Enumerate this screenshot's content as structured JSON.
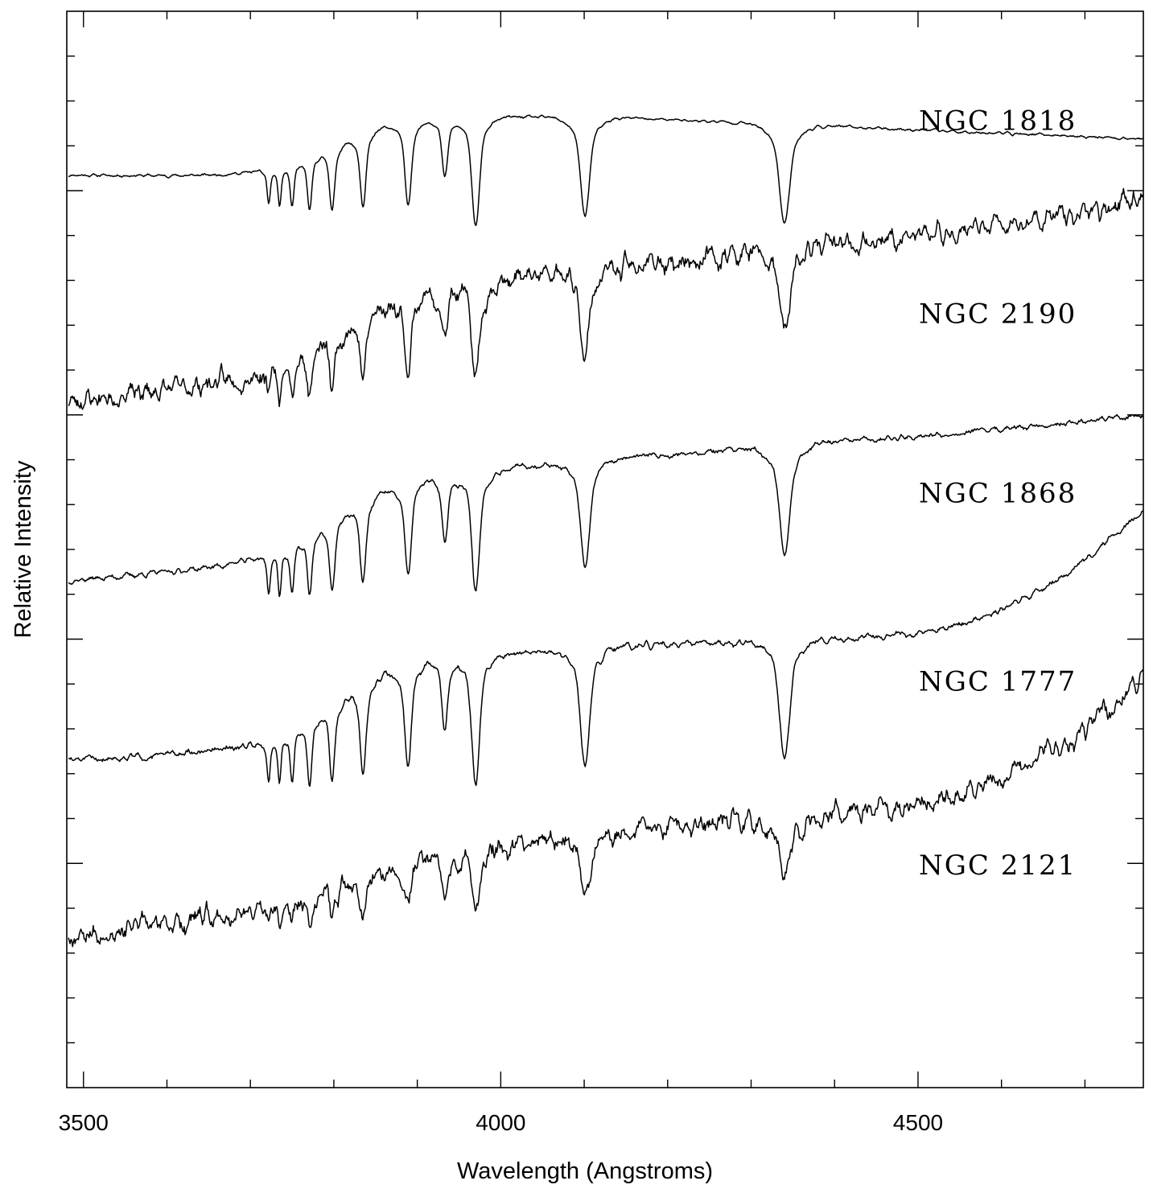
{
  "chart_data": {
    "type": "line",
    "title": "",
    "xlabel": "Wavelength (Angstroms)",
    "ylabel": "Relative Intensity",
    "xlim": [
      3480,
      4770
    ],
    "ylim": [
      0,
      24
    ],
    "y_tick_labels_shown": false,
    "grid": false,
    "legend": "none (series labelled inline at right)",
    "x_ticks": [
      3500,
      4000,
      4500
    ],
    "x_tick_labels": [
      "3500",
      "4000",
      "4500"
    ],
    "absorption_features": [
      {
        "wavelength": 3722,
        "depth": 0.35,
        "width": 2.5
      },
      {
        "wavelength": 3735,
        "depth": 0.4,
        "width": 2.5
      },
      {
        "wavelength": 3750,
        "depth": 0.45,
        "width": 3
      },
      {
        "wavelength": 3771,
        "depth": 0.55,
        "width": 3.5
      },
      {
        "wavelength": 3798,
        "depth": 0.65,
        "width": 4
      },
      {
        "wavelength": 3835,
        "depth": 0.75,
        "width": 4.5
      },
      {
        "wavelength": 3889,
        "depth": 0.85,
        "width": 5
      },
      {
        "wavelength": 3933,
        "depth": 0.6,
        "width": 4.5
      },
      {
        "wavelength": 3970,
        "depth": 1.1,
        "width": 6
      },
      {
        "wavelength": 4101,
        "depth": 1.0,
        "width": 7
      },
      {
        "wavelength": 4340,
        "depth": 1.0,
        "width": 8
      }
    ],
    "series": [
      {
        "name": "NGC 1818",
        "offset": 19.8,
        "continuum_start": 0.55,
        "continuum_end": 0.3,
        "balmer_jump": 1.4,
        "line_strength": 1.9,
        "noise": 0.06,
        "seed": 11,
        "red_rise": 0.0
      },
      {
        "name": "NGC 2190",
        "offset": 15.5,
        "continuum_start": -0.2,
        "continuum_end": 2.5,
        "balmer_jump": 1.6,
        "line_strength": 1.6,
        "noise": 0.45,
        "seed": 23,
        "red_rise": 0.3
      },
      {
        "name": "NGC 1868",
        "offset": 11.5,
        "continuum_start": -0.2,
        "continuum_end": 1.8,
        "balmer_jump": 1.7,
        "line_strength": 2.1,
        "noise": 0.12,
        "seed": 37,
        "red_rise": 0.1
      },
      {
        "name": "NGC 1777",
        "offset": 7.3,
        "continuum_start": 0.0,
        "continuum_end": 1.2,
        "balmer_jump": 1.9,
        "line_strength": 2.3,
        "noise": 0.14,
        "seed": 51,
        "red_rise": 2.6
      },
      {
        "name": "NGC 2121",
        "offset": 3.2,
        "continuum_start": 0.2,
        "continuum_end": 2.8,
        "balmer_jump": 0.9,
        "line_strength": 1.0,
        "noise": 0.45,
        "seed": 67,
        "red_rise": 2.4
      }
    ]
  }
}
